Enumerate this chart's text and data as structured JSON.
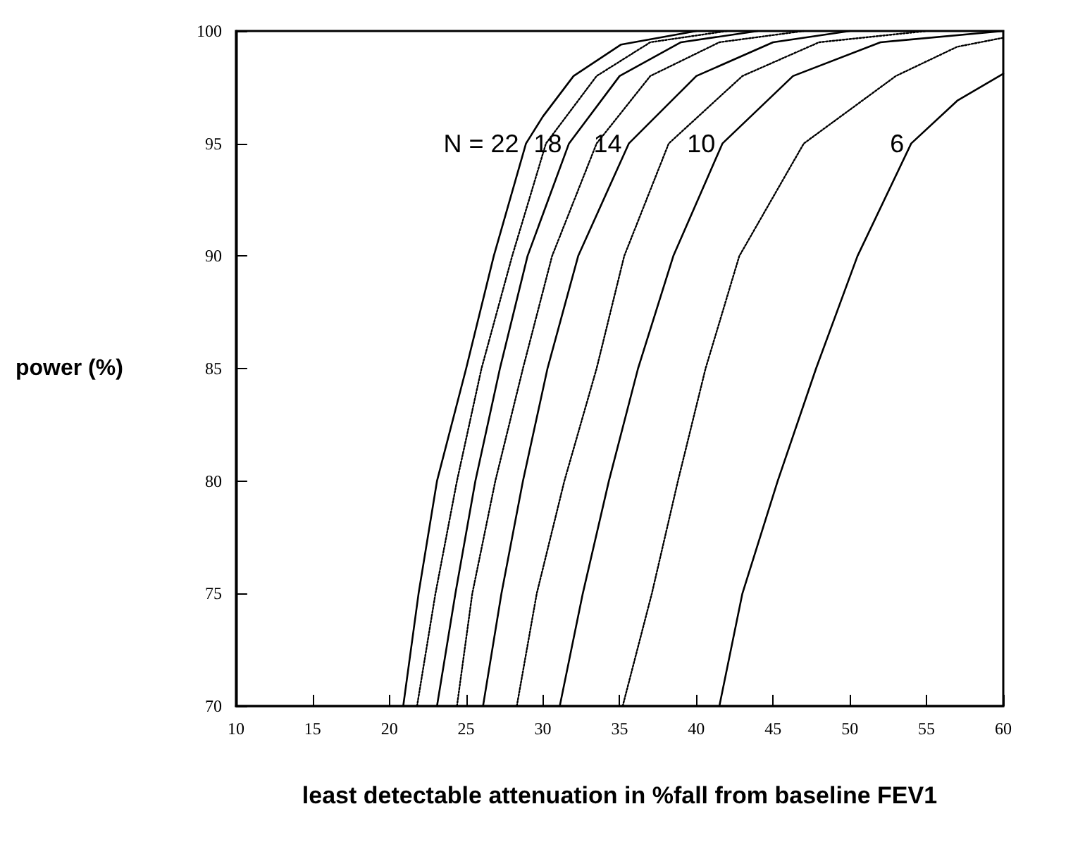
{
  "chart_data": {
    "type": "line",
    "xlabel": "least detectable attenuation in %fall from baseline FEV1",
    "ylabel": "power (%)",
    "xlim": [
      10,
      60
    ],
    "xticks": [
      10,
      15,
      20,
      25,
      30,
      35,
      40,
      45,
      50,
      55,
      60
    ],
    "ylim": [
      70,
      100
    ],
    "yticks": [
      70,
      75,
      80,
      85,
      90,
      95,
      100
    ],
    "grid": false,
    "marker": "none",
    "series": [
      {
        "color": "#000000",
        "line_style": "solid",
        "x": [
          20.9,
          21.9,
          23.1,
          25.0,
          26.8,
          28.9,
          30.0,
          32.0,
          35.1,
          40.0
        ],
        "values": [
          70,
          75,
          80,
          85,
          90,
          95,
          96.2,
          98,
          99.4,
          100
        ]
      },
      {
        "color": "#000000",
        "line_style": "dotted",
        "x": [
          21.8,
          23.0,
          24.4,
          26.0,
          28.0,
          30.2,
          33.5,
          37.0,
          42.0
        ],
        "values": [
          70,
          75,
          80,
          85,
          90,
          95,
          98,
          99.5,
          100
        ]
      },
      {
        "color": "#000000",
        "line_style": "solid",
        "x": [
          23.1,
          24.3,
          25.6,
          27.2,
          29.0,
          31.7,
          35.0,
          39.0,
          44.0
        ],
        "values": [
          70,
          75,
          80,
          85,
          90,
          95,
          98,
          99.5,
          100
        ]
      },
      {
        "color": "#000000",
        "line_style": "dotted",
        "x": [
          24.4,
          25.4,
          26.9,
          28.7,
          30.6,
          33.5,
          37.0,
          41.5,
          47.0
        ],
        "values": [
          70,
          75,
          80,
          85,
          90,
          95,
          98,
          99.5,
          100
        ]
      },
      {
        "color": "#000000",
        "line_style": "solid",
        "x": [
          26.1,
          27.3,
          28.7,
          30.3,
          32.3,
          35.6,
          40.0,
          45.0,
          50.0
        ],
        "values": [
          70,
          75,
          80,
          85,
          90,
          95,
          98,
          99.5,
          100
        ]
      },
      {
        "color": "#000000",
        "line_style": "dotted",
        "x": [
          28.3,
          29.6,
          31.4,
          33.5,
          35.3,
          38.2,
          43.0,
          48.0,
          55.0
        ],
        "values": [
          70,
          75,
          80,
          85,
          90,
          95,
          98,
          99.5,
          100
        ]
      },
      {
        "color": "#000000",
        "line_style": "solid",
        "x": [
          31.1,
          32.6,
          34.3,
          36.2,
          38.5,
          41.7,
          46.3,
          52.0,
          60.0
        ],
        "values": [
          70,
          75,
          80,
          85,
          90,
          95,
          98,
          99.5,
          100
        ]
      },
      {
        "color": "#000000",
        "line_style": "dotted",
        "x": [
          35.2,
          37.1,
          38.8,
          40.6,
          42.8,
          47.0,
          53.0,
          57.0,
          60.0
        ],
        "values": [
          70,
          75,
          80,
          85,
          90,
          95,
          98,
          99.3,
          99.7
        ]
      },
      {
        "color": "#000000",
        "line_style": "solid",
        "x": [
          41.5,
          43.0,
          45.3,
          47.8,
          50.5,
          54.0,
          57.0,
          60.0
        ],
        "values": [
          70,
          75,
          80,
          85,
          90,
          95,
          96.9,
          98.1
        ]
      }
    ],
    "annotations": [
      {
        "text": "N = 22",
        "x": 28.9,
        "y": 95
      },
      {
        "text": "18",
        "x": 31.7,
        "y": 95
      },
      {
        "text": "14",
        "x": 35.6,
        "y": 95
      },
      {
        "text": "10",
        "x": 41.7,
        "y": 95
      },
      {
        "text": "6",
        "x": 54.0,
        "y": 95
      }
    ]
  }
}
